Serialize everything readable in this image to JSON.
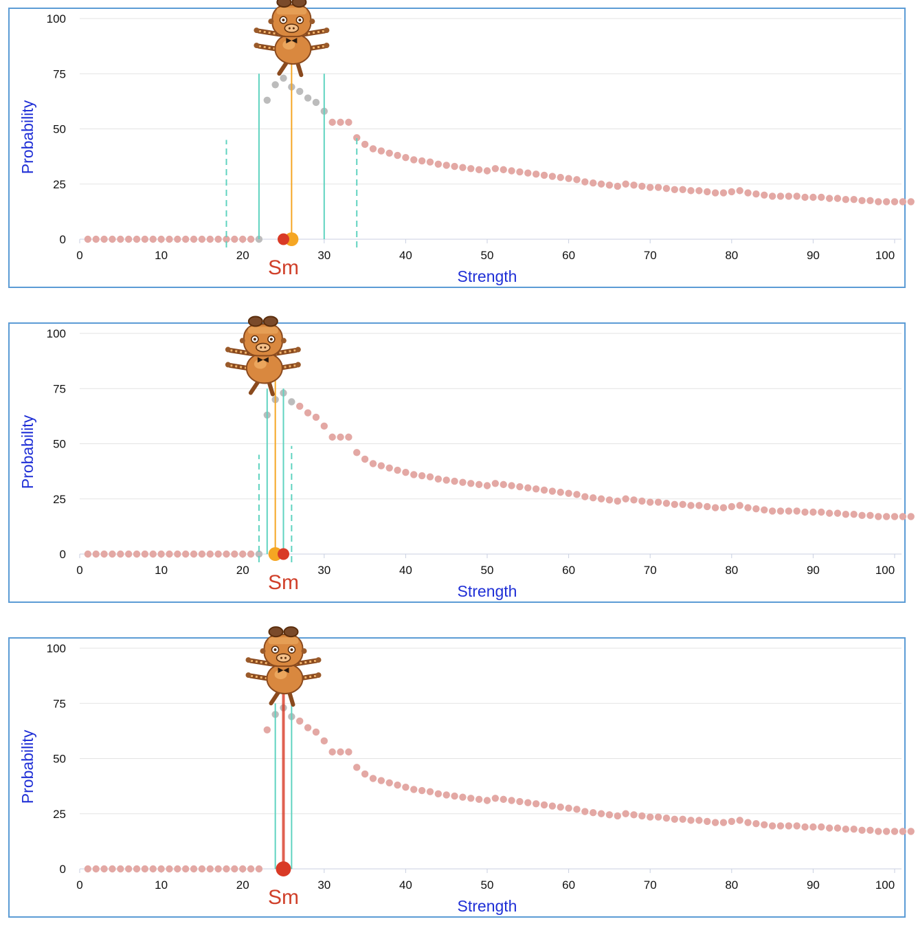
{
  "colors": {
    "point": "#e3a8a4",
    "point_gray": "#bcbcbc",
    "sm_red": "#d93a26",
    "guess_orange": "#f5a623",
    "guide_teal": "#5fd3c0",
    "axis_text_blue": "#1f2fd6",
    "sm_label": "#d0402a",
    "frame": "#5b9bd5",
    "grid": "#e3e3e3"
  },
  "mascot_icon": "robot-pig-mascot-icon",
  "chart_data": [
    {
      "type": "scatter",
      "xlabel": "Strength",
      "ylabel": "Probability",
      "marker_label": "Sm",
      "xlim": [
        0,
        100
      ],
      "ylim": [
        0,
        100
      ],
      "xticks": [
        "0",
        "10",
        "20",
        "30",
        "40",
        "50",
        "60",
        "70",
        "80",
        "90",
        "100"
      ],
      "yticks": [
        "0",
        "25",
        "50",
        "75",
        "100"
      ],
      "grid": true,
      "sm_value": 25,
      "guess_value": 26,
      "solid_guides": [
        22,
        30
      ],
      "dashed_guides": [
        18,
        34
      ],
      "highlight_range": [
        22,
        30
      ]
    },
    {
      "type": "scatter",
      "xlabel": "Strength",
      "ylabel": "Probability",
      "marker_label": "Sm",
      "xlim": [
        0,
        100
      ],
      "ylim": [
        0,
        100
      ],
      "xticks": [
        "0",
        "10",
        "20",
        "30",
        "40",
        "50",
        "60",
        "70",
        "80",
        "90",
        "100"
      ],
      "yticks": [
        "0",
        "25",
        "50",
        "75",
        "100"
      ],
      "grid": true,
      "sm_value": 25,
      "guess_value": 24,
      "solid_guides": [
        23,
        25
      ],
      "dashed_guides": [
        22,
        26
      ],
      "highlight_range": [
        22,
        26
      ]
    },
    {
      "type": "scatter",
      "xlabel": "Strength",
      "ylabel": "Probability",
      "marker_label": "Sm",
      "xlim": [
        0,
        100
      ],
      "ylim": [
        0,
        100
      ],
      "xticks": [
        "0",
        "10",
        "20",
        "30",
        "40",
        "50",
        "60",
        "70",
        "80",
        "90",
        "100"
      ],
      "yticks": [
        "0",
        "25",
        "50",
        "75",
        "100"
      ],
      "grid": true,
      "sm_value": 25,
      "guess_value": 25,
      "solid_guides": [
        24,
        26
      ],
      "dashed_guides": [],
      "highlight_range": [
        24,
        26
      ]
    }
  ],
  "series_values": [
    0,
    0,
    0,
    0,
    0,
    0,
    0,
    0,
    0,
    0,
    0,
    0,
    0,
    0,
    0,
    0,
    0,
    0,
    0,
    0,
    0,
    0,
    63,
    70,
    73,
    69,
    67,
    64,
    62,
    58,
    53,
    53,
    53,
    46,
    43,
    41,
    40,
    39,
    38,
    37,
    36,
    35.5,
    35,
    34,
    33.5,
    33,
    32.5,
    32,
    31.5,
    31,
    32,
    31.5,
    31,
    30.5,
    30,
    29.5,
    29,
    28.5,
    28,
    27.5,
    27,
    26,
    25.5,
    25,
    24.5,
    24,
    25,
    24.5,
    24,
    23.5,
    23.5,
    23,
    22.5,
    22.5,
    22,
    22,
    21.5,
    21,
    21,
    21.5,
    22,
    21,
    20.5,
    20,
    19.5,
    19.5,
    19.5,
    19.5,
    19,
    19,
    19,
    18.5,
    18.5,
    18,
    18,
    17.5,
    17.5,
    17,
    17,
    17,
    17,
    17
  ]
}
